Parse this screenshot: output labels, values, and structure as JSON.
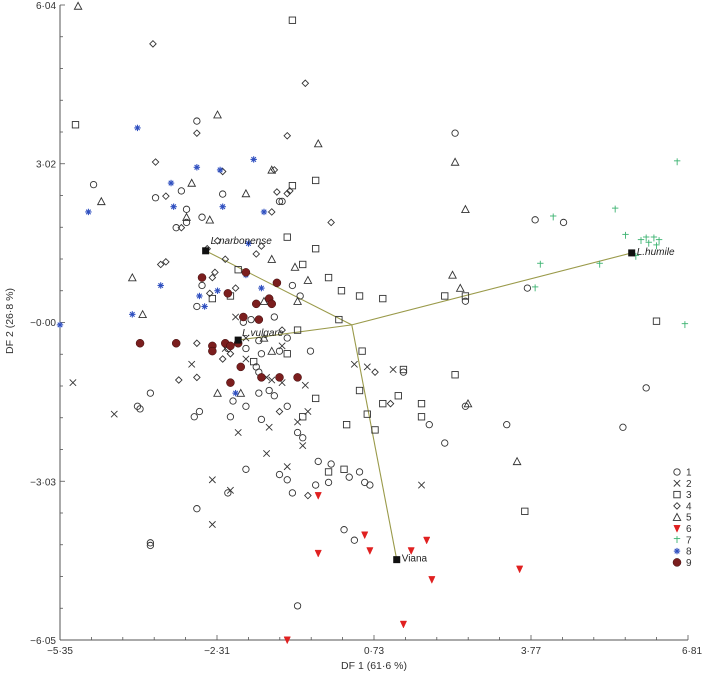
{
  "chart_data": {
    "type": "scatter",
    "title": "",
    "xlabel": "DF 1 (61·6 %)",
    "ylabel": "DF 2 (26·8 %)",
    "xlim": [
      -5.35,
      6.81
    ],
    "ylim": [
      -6.05,
      6.04
    ],
    "xticks": [
      {
        "value": -5.35,
        "label": "−5·35"
      },
      {
        "value": -2.31,
        "label": "−2·31"
      },
      {
        "value": 0.73,
        "label": "0·73"
      },
      {
        "value": 3.77,
        "label": "3·77"
      },
      {
        "value": 6.81,
        "label": "6·81"
      }
    ],
    "yticks": [
      {
        "value": 6.04,
        "label": "6·04"
      },
      {
        "value": 3.02,
        "label": "3·02"
      },
      {
        "value": 0.0,
        "label": "−0·00"
      },
      {
        "value": -3.03,
        "label": "−3·03"
      },
      {
        "value": -6.05,
        "label": "−6·05"
      }
    ],
    "grid": false,
    "legend_position": "lower right",
    "hub": {
      "x": 0.3,
      "y": -0.05
    },
    "centroids": [
      {
        "name": "L.narbonense",
        "x": -2.53,
        "y": 1.36,
        "italic": true
      },
      {
        "name": "L.vulgare",
        "x": -1.9,
        "y": -0.34,
        "italic": true
      },
      {
        "name": "L.humile",
        "x": 5.72,
        "y": 1.32,
        "italic": true
      },
      {
        "name": "Viana",
        "x": 1.17,
        "y": -4.52,
        "italic": false
      }
    ],
    "series": [
      {
        "name": "1",
        "marker": "circle",
        "color": "#333333",
        "points": [
          [
            -2.7,
            3.83
          ],
          [
            -3.5,
            2.37
          ],
          [
            -4.7,
            2.62
          ],
          [
            -2.2,
            2.44
          ],
          [
            -3,
            2.5
          ],
          [
            -2.9,
            2.15
          ],
          [
            -3.1,
            1.8
          ],
          [
            -1.05,
            2.3
          ],
          [
            -1.1,
            2.3
          ],
          [
            -2.9,
            1.9
          ],
          [
            -2.6,
            2.0
          ],
          [
            2.3,
            3.6
          ],
          [
            4.4,
            1.9
          ],
          [
            3.85,
            1.95
          ],
          [
            2.5,
            0.4
          ],
          [
            3.7,
            0.65
          ],
          [
            -2.6,
            0.7
          ],
          [
            -2.7,
            0.3
          ],
          [
            -1.65,
            0.05
          ],
          [
            -1.8,
            0.0
          ],
          [
            -0.7,
            0.5
          ],
          [
            -0.85,
            0.7
          ],
          [
            -1.2,
            0.1
          ],
          [
            -0.95,
            -0.3
          ],
          [
            -1.5,
            -0.35
          ],
          [
            -1.75,
            -0.5
          ],
          [
            -2.1,
            -0.5
          ],
          [
            -1.45,
            -0.6
          ],
          [
            -1.1,
            -0.55
          ],
          [
            -0.5,
            -0.55
          ],
          [
            -1.55,
            -0.85
          ],
          [
            -1.5,
            -0.95
          ],
          [
            -1.3,
            -1.3
          ],
          [
            -1.5,
            -1.35
          ],
          [
            -1.2,
            -1.4
          ],
          [
            -0.95,
            -1.6
          ],
          [
            -2.0,
            -1.5
          ],
          [
            -1.75,
            -1.6
          ],
          [
            -2.65,
            -1.7
          ],
          [
            -2.75,
            -1.8
          ],
          [
            -3.6,
            -1.35
          ],
          [
            -3.85,
            -1.6
          ],
          [
            -3.8,
            -1.65
          ],
          [
            -2.05,
            -1.8
          ],
          [
            -1.45,
            -1.85
          ],
          [
            -0.75,
            -2.1
          ],
          [
            -0.65,
            -2.2
          ],
          [
            -0.35,
            -2.65
          ],
          [
            -0.1,
            -2.7
          ],
          [
            -1.75,
            -2.8
          ],
          [
            -1.1,
            -2.9
          ],
          [
            -0.95,
            -3.0
          ],
          [
            -0.85,
            -3.25
          ],
          [
            -2.1,
            -3.25
          ],
          [
            -0.15,
            -3.05
          ],
          [
            -2.7,
            -3.55
          ],
          [
            -3.6,
            -4.2
          ],
          [
            -3.6,
            -4.25
          ],
          [
            -0.75,
            -5.4
          ],
          [
            0.55,
            -3.05
          ],
          [
            0.65,
            -3.1
          ],
          [
            0.15,
            -3.95
          ],
          [
            0.35,
            -4.15
          ],
          [
            -0.4,
            -3.1
          ],
          [
            2.5,
            -1.6
          ],
          [
            3.3,
            -1.95
          ],
          [
            6.0,
            -1.25
          ],
          [
            5.55,
            -2.0
          ],
          [
            0.45,
            -2.85
          ],
          [
            0.25,
            -2.95
          ],
          [
            1.8,
            -1.95
          ],
          [
            2.1,
            -2.3
          ],
          [
            1.3,
            -0.95
          ]
        ]
      },
      {
        "name": "2",
        "marker": "cross",
        "color": "#333333",
        "points": [
          [
            -5.1,
            -1.15
          ],
          [
            -4.3,
            -1.75
          ],
          [
            -2.8,
            -0.8
          ],
          [
            -1.95,
            0.1
          ],
          [
            -1.75,
            -0.3
          ],
          [
            -2.15,
            -0.5
          ],
          [
            -1.75,
            -0.7
          ],
          [
            -1.05,
            -0.45
          ],
          [
            -1.35,
            -1.05
          ],
          [
            -1.25,
            -1.1
          ],
          [
            -0.6,
            -1.2
          ],
          [
            -0.55,
            -1.7
          ],
          [
            -0.75,
            -1.9
          ],
          [
            -1.3,
            -2.0
          ],
          [
            -1.9,
            -2.1
          ],
          [
            -1.35,
            -2.5
          ],
          [
            -0.95,
            -2.75
          ],
          [
            -2.4,
            -3.0
          ],
          [
            -2.05,
            -3.2
          ],
          [
            -2.4,
            -3.85
          ],
          [
            0.35,
            -0.8
          ],
          [
            0.6,
            -0.85
          ],
          [
            1.1,
            -0.9
          ],
          [
            1.65,
            -3.1
          ],
          [
            -1.05,
            -1.15
          ],
          [
            -0.65,
            -2.35
          ]
        ]
      },
      {
        "name": "3",
        "marker": "square",
        "color": "#333333",
        "points": [
          [
            -5.05,
            3.76
          ],
          [
            -1.9,
            1.0
          ],
          [
            -2.4,
            0.45
          ],
          [
            -1.6,
            -0.75
          ],
          [
            -0.85,
            2.6
          ],
          [
            -0.4,
            2.7
          ],
          [
            -0.95,
            1.62
          ],
          [
            -0.4,
            1.4
          ],
          [
            -0.65,
            1.1
          ],
          [
            -0.15,
            0.85
          ],
          [
            0.1,
            0.6
          ],
          [
            0.45,
            0.5
          ],
          [
            0.9,
            0.45
          ],
          [
            1.3,
            -0.9
          ],
          [
            2.1,
            0.5
          ],
          [
            2.5,
            0.5
          ],
          [
            0.05,
            0.05
          ],
          [
            0.5,
            -0.55
          ],
          [
            0.45,
            -1.3
          ],
          [
            0.6,
            -1.75
          ],
          [
            0.9,
            -1.55
          ],
          [
            1.2,
            -1.4
          ],
          [
            0.75,
            -2.05
          ],
          [
            1.65,
            -1.55
          ],
          [
            2.3,
            -1.0
          ],
          [
            0.2,
            -1.95
          ],
          [
            0.15,
            -2.8
          ],
          [
            -0.95,
            -0.6
          ],
          [
            -0.4,
            -1.45
          ],
          [
            -0.65,
            -1.8
          ],
          [
            -0.85,
            5.75
          ],
          [
            1.65,
            -1.8
          ],
          [
            3.65,
            -3.6
          ],
          [
            6.2,
            0.02
          ],
          [
            -0.15,
            -2.85
          ],
          [
            -2.05,
            0.5
          ],
          [
            -0.75,
            -0.15
          ]
        ]
      },
      {
        "name": "4",
        "marker": "diamond",
        "color": "#333333",
        "points": [
          [
            -3.55,
            5.3
          ],
          [
            -3.5,
            3.05
          ],
          [
            -2.7,
            3.6
          ],
          [
            -2.2,
            2.87
          ],
          [
            -1.2,
            2.9
          ],
          [
            -0.6,
            4.55
          ],
          [
            -0.95,
            3.55
          ],
          [
            -0.95,
            2.45
          ],
          [
            -1.15,
            2.48
          ],
          [
            -0.9,
            2.5
          ],
          [
            -0.1,
            1.9
          ],
          [
            -2.3,
            1.55
          ],
          [
            -3.3,
            2.4
          ],
          [
            -3.0,
            1.8
          ],
          [
            -1.55,
            1.3
          ],
          [
            -1.45,
            1.45
          ],
          [
            -1.95,
            0.65
          ],
          [
            -2.4,
            0.85
          ],
          [
            -2.35,
            0.95
          ],
          [
            -2.45,
            0.55
          ],
          [
            -2.5,
            1.4
          ],
          [
            -2.15,
            1.2
          ],
          [
            -3.3,
            1.15
          ],
          [
            -3.4,
            1.1
          ],
          [
            -2.2,
            -0.7
          ],
          [
            -2.05,
            -0.6
          ],
          [
            -3.05,
            -1.1
          ],
          [
            -2.7,
            -1.05
          ],
          [
            -1.05,
            -0.15
          ],
          [
            1.05,
            -1.55
          ],
          [
            0.75,
            -0.95
          ],
          [
            -1.1,
            -1.7
          ],
          [
            -0.55,
            -3.3
          ],
          [
            -1.25,
            2.1
          ],
          [
            -2.7,
            -0.4
          ]
        ]
      },
      {
        "name": "5",
        "marker": "triangle",
        "color": "#333333",
        "points": [
          [
            -5.0,
            6.02
          ],
          [
            -4.55,
            2.3
          ],
          [
            -3.95,
            0.85
          ],
          [
            -2.8,
            2.65
          ],
          [
            -2.3,
            3.95
          ],
          [
            -1.75,
            2.45
          ],
          [
            -2.9,
            2.0
          ],
          [
            -2.45,
            1.95
          ],
          [
            -0.35,
            3.4
          ],
          [
            -0.8,
            1.05
          ],
          [
            -1.25,
            1.2
          ],
          [
            -0.75,
            0.4
          ],
          [
            -0.55,
            0.8
          ],
          [
            -1.4,
            -0.3
          ],
          [
            -1.25,
            -0.55
          ],
          [
            -1.85,
            -1.35
          ],
          [
            -2.3,
            -1.35
          ],
          [
            -1.4,
            0.4
          ],
          [
            2.3,
            3.05
          ],
          [
            2.5,
            2.15
          ],
          [
            2.4,
            0.65
          ],
          [
            2.25,
            0.9
          ],
          [
            2.55,
            -1.55
          ],
          [
            3.5,
            -2.65
          ],
          [
            -1.25,
            2.9
          ],
          [
            -3.75,
            0.15
          ]
        ]
      },
      {
        "name": "6",
        "marker": "triangle-down",
        "color": "#e02020",
        "points": [
          [
            -0.35,
            -3.3
          ],
          [
            -0.35,
            -4.4
          ],
          [
            0.55,
            -4.05
          ],
          [
            0.65,
            -4.35
          ],
          [
            1.45,
            -4.35
          ],
          [
            1.75,
            -4.15
          ],
          [
            1.85,
            -4.9
          ],
          [
            3.55,
            -4.7
          ],
          [
            1.3,
            -5.75
          ],
          [
            -0.95,
            -6.05
          ]
        ]
      },
      {
        "name": "7",
        "marker": "plus",
        "color": "#3cb371",
        "points": [
          [
            6.6,
            3.05
          ],
          [
            4.2,
            2.0
          ],
          [
            5.4,
            2.15
          ],
          [
            5.6,
            1.65
          ],
          [
            5.9,
            1.55
          ],
          [
            6.0,
            1.6
          ],
          [
            6.05,
            1.5
          ],
          [
            6.15,
            1.6
          ],
          [
            6.25,
            1.55
          ],
          [
            6.2,
            1.45
          ],
          [
            5.8,
            1.25
          ],
          [
            3.95,
            1.1
          ],
          [
            5.1,
            1.1
          ],
          [
            3.85,
            0.65
          ],
          [
            6.75,
            -0.05
          ]
        ]
      },
      {
        "name": "8",
        "marker": "asterisk",
        "color": "#3050c0",
        "points": [
          [
            -3.85,
            3.7
          ],
          [
            -4.8,
            2.1
          ],
          [
            -3.2,
            2.65
          ],
          [
            -2.7,
            2.95
          ],
          [
            -2.25,
            2.9
          ],
          [
            -1.6,
            3.1
          ],
          [
            -3.15,
            2.2
          ],
          [
            -2.2,
            2.2
          ],
          [
            -1.4,
            2.1
          ],
          [
            -1.7,
            1.5
          ],
          [
            -3.4,
            0.7
          ],
          [
            -2.3,
            0.6
          ],
          [
            -2.65,
            0.5
          ],
          [
            -2.55,
            0.3
          ],
          [
            -1.75,
            0.9
          ],
          [
            -1.45,
            0.65
          ],
          [
            -3.95,
            0.15
          ],
          [
            -5.35,
            -0.05
          ],
          [
            -1.95,
            -1.35
          ]
        ]
      },
      {
        "name": "9",
        "marker": "filled-circle",
        "color": "#7b1e1e",
        "points": [
          [
            -2.6,
            0.85
          ],
          [
            -1.75,
            0.95
          ],
          [
            -2.1,
            0.55
          ],
          [
            -1.55,
            0.35
          ],
          [
            -1.5,
            0.05
          ],
          [
            -1.3,
            0.45
          ],
          [
            -1.25,
            0.35
          ],
          [
            -1.8,
            0.1
          ],
          [
            -3.8,
            -0.4
          ],
          [
            -3.1,
            -0.4
          ],
          [
            -2.4,
            -0.45
          ],
          [
            -2.15,
            -0.4
          ],
          [
            -1.9,
            -0.4
          ],
          [
            -2.4,
            -0.55
          ],
          [
            -2.05,
            -0.45
          ],
          [
            -2.05,
            -1.15
          ],
          [
            -1.45,
            -1.05
          ],
          [
            -1.1,
            -1.05
          ],
          [
            -0.75,
            -1.05
          ],
          [
            -1.85,
            -0.85
          ],
          [
            -1.15,
            0.75
          ]
        ]
      }
    ]
  },
  "legend": [
    {
      "label": "1",
      "marker": "circle",
      "color": "#333333"
    },
    {
      "label": "2",
      "marker": "cross",
      "color": "#333333"
    },
    {
      "label": "3",
      "marker": "square",
      "color": "#333333"
    },
    {
      "label": "4",
      "marker": "diamond",
      "color": "#333333"
    },
    {
      "label": "5",
      "marker": "triangle",
      "color": "#333333"
    },
    {
      "label": "6",
      "marker": "triangle-down",
      "color": "#e02020"
    },
    {
      "label": "7",
      "marker": "plus",
      "color": "#3cb371"
    },
    {
      "label": "8",
      "marker": "asterisk",
      "color": "#3050c0"
    },
    {
      "label": "9",
      "marker": "filled-circle",
      "color": "#7b1e1e"
    }
  ],
  "colors": {
    "axis": "#555555",
    "connector": "#9a9a4a",
    "centroid": "#111111"
  }
}
